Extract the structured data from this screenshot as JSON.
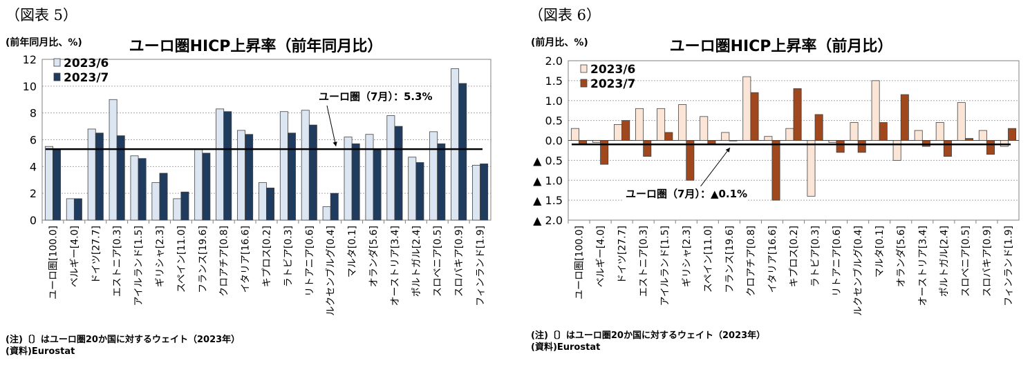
{
  "left": {
    "figure_label": "（図表 5）",
    "note1": "(注)〔〕はユーロ圏20か国に対するウェイト（2023年）",
    "note2": "(資料)Eurostat"
  },
  "right": {
    "figure_label": "（図表 6）",
    "note1": "(注)〔〕はユーロ圏20か国に対するウェイト（2023年）",
    "note2": "(資料)Eurostat"
  },
  "chart_data": [
    {
      "type": "bar",
      "title": "ユーロ圏HICP上昇率（前年同月比）",
      "ylabel": "(前年同月比、%)",
      "ylim": [
        0,
        12
      ],
      "yticks": [
        "0",
        "2",
        "4",
        "6",
        "8",
        "10",
        "12"
      ],
      "grid": true,
      "legend_position": "top-left",
      "categories": [
        "ユーロ圏[100.0]",
        "ベルギー[4.0]",
        "ドイツ[27.7]",
        "エストニア[0.3]",
        "アイルランド[1.5]",
        "ギリシャ[2.3]",
        "スペイン[11.0]",
        "フランス[19.6]",
        "クロアチア[0.8]",
        "イタリア[16.6]",
        "キプロス[0.2]",
        "ラトビア[0.3]",
        "リトアニア[0.6]",
        "ルクセンブルグ[0.4]",
        "マルタ[0.1]",
        "オランダ[5.6]",
        "オーストリア[3.4]",
        "ポルトガル[2.4]",
        "スロベニア[0.5]",
        "スロバキア[0.9]",
        "フィンランド[1.9]"
      ],
      "series": [
        {
          "name": "2023/6",
          "color": "#dce6f2",
          "values": [
            5.5,
            1.6,
            6.8,
            9.0,
            4.8,
            2.8,
            1.6,
            5.3,
            8.3,
            6.7,
            2.8,
            8.1,
            8.2,
            1.0,
            6.2,
            6.4,
            7.8,
            4.7,
            6.6,
            11.3,
            4.1
          ]
        },
        {
          "name": "2023/7",
          "color": "#1f3b5e",
          "values": [
            5.3,
            1.6,
            6.5,
            6.3,
            4.6,
            3.5,
            2.1,
            5.0,
            8.1,
            6.4,
            2.4,
            6.5,
            7.1,
            2.0,
            5.7,
            5.3,
            7.0,
            4.3,
            5.7,
            10.2,
            4.2
          ]
        }
      ],
      "reference_line": {
        "value": 5.3,
        "label": "ユーロ圏（7月）：5.3%"
      }
    },
    {
      "type": "bar",
      "title": "ユーロ圏HICP上昇率（前月比）",
      "ylabel": "(前月比、%)",
      "ylim": [
        -2.0,
        2.0
      ],
      "yticks": [
        "▲ 2.0",
        "▲ 1.5",
        "▲ 1.0",
        "▲ 0.5",
        "0.0",
        "0.5",
        "1.0",
        "1.5",
        "2.0"
      ],
      "grid": true,
      "legend_position": "top-left",
      "categories": [
        "ユーロ圏[100.0]",
        "ベルギー[4.0]",
        "ドイツ[27.7]",
        "エストニア[0.3]",
        "アイルランド[1.5]",
        "ギリシャ[2.3]",
        "スペイン[11.0]",
        "フランス[19.6]",
        "クロアチア[0.8]",
        "イタリア[16.6]",
        "キプロス[0.2]",
        "ラトビア[0.3]",
        "リトアニア[0.6]",
        "ルクセンブルグ[0.4]",
        "マルタ[0.1]",
        "オランダ[5.6]",
        "オーストリア[3.4]",
        "ポルトガル[2.4]",
        "スロベニア[0.5]",
        "スロバキア[0.9]",
        "フィンランド[1.9]"
      ],
      "series": [
        {
          "name": "2023/6",
          "color": "#fbe5d6",
          "values": [
            0.3,
            -0.05,
            0.4,
            0.8,
            0.8,
            0.9,
            0.6,
            0.2,
            1.6,
            0.1,
            0.3,
            -1.4,
            -0.05,
            0.45,
            1.5,
            -0.5,
            0.25,
            0.45,
            0.95,
            0.25,
            -0.15
          ]
        },
        {
          "name": "2023/7",
          "color": "#a0471d",
          "values": [
            -0.1,
            -0.6,
            0.5,
            -0.4,
            0.2,
            -1.0,
            -0.1,
            0.0,
            1.2,
            -1.5,
            1.3,
            0.65,
            -0.3,
            -0.3,
            0.45,
            1.15,
            -0.15,
            -0.4,
            0.05,
            -0.35,
            0.3
          ]
        }
      ],
      "reference_line": {
        "value": -0.1,
        "label": "ユーロ圏（7月）：▲0.1%"
      }
    }
  ]
}
